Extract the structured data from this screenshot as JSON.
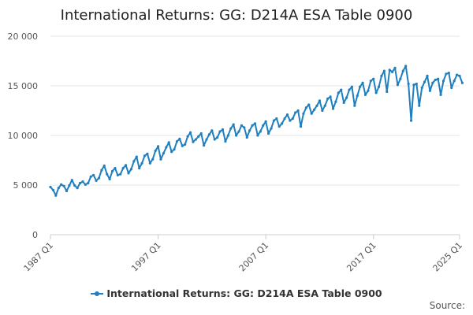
{
  "chart_data": {
    "type": "line",
    "title": "International Returns: GG: D214A ESA Table 0900",
    "xlabel": "",
    "ylabel": "",
    "x_tick_labels": [
      "1987 Q1",
      "1997 Q1",
      "2007 Q1",
      "2017 Q1",
      "2025 Q1"
    ],
    "y_tick_labels": [
      "0",
      "5 000",
      "10 000",
      "15 000",
      "20 000"
    ],
    "ylim": [
      0,
      20000
    ],
    "xlim": [
      "1987 Q1",
      "2025 Q1"
    ],
    "grid": "horizontal",
    "legend": "bottom-center",
    "series": [
      {
        "name": "International Returns: GG: D214A ESA Table 0900",
        "color": "#1f7fbf",
        "values": [
          4800,
          4500,
          3950,
          4700,
          5050,
          4900,
          4400,
          4950,
          5500,
          4950,
          4700,
          5200,
          5350,
          5050,
          5200,
          5850,
          6000,
          5450,
          5700,
          6500,
          6950,
          6100,
          5600,
          6400,
          6700,
          6000,
          6100,
          6700,
          7000,
          6200,
          6600,
          7400,
          7850,
          6700,
          7200,
          7950,
          8150,
          7200,
          7600,
          8450,
          8900,
          7600,
          8200,
          8800,
          9300,
          8350,
          8600,
          9400,
          9650,
          8950,
          9100,
          9900,
          10300,
          9350,
          9600,
          9900,
          10200,
          9000,
          9600,
          10100,
          10500,
          9600,
          9800,
          10400,
          10600,
          9400,
          10000,
          10700,
          11100,
          10000,
          10400,
          11000,
          10800,
          9800,
          10500,
          11000,
          11200,
          10000,
          10400,
          11000,
          11400,
          10200,
          10700,
          11500,
          11700,
          10900,
          11200,
          11700,
          12100,
          11500,
          11700,
          12300,
          12500,
          10900,
          12200,
          12800,
          13100,
          12200,
          12600,
          13000,
          13500,
          12500,
          13000,
          13700,
          13900,
          12700,
          13400,
          14300,
          14600,
          13300,
          13800,
          14600,
          14900,
          13000,
          14000,
          14900,
          15300,
          14100,
          14500,
          15500,
          15700,
          14300,
          14900,
          16000,
          16500,
          14400,
          16600,
          16400,
          16800,
          15100,
          15700,
          16500,
          17000,
          15200,
          11500,
          15100,
          15200,
          13000,
          14800,
          15400,
          16000,
          14500,
          15300,
          15600,
          15700,
          14100,
          15500,
          16200,
          16300,
          14800,
          15500,
          16100,
          16000,
          15300
        ]
      }
    ],
    "credits": "Source:"
  }
}
